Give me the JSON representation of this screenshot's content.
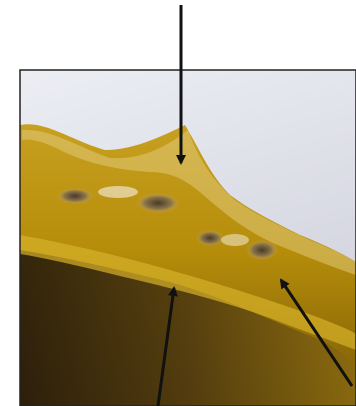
{
  "figure": {
    "description_visible_text": "",
    "arrows": [
      {
        "name": "top-arrow",
        "direction": "down"
      },
      {
        "name": "bottom-left-arrow",
        "direction": "up"
      },
      {
        "name": "bottom-right-arrow",
        "direction": "up-left"
      }
    ],
    "colors": {
      "sky": "#d9dbe6",
      "sky_light": "#eceef4",
      "gold": "#c9a10c",
      "gold_dark": "#8a6a08",
      "shadow": "#2a1e12",
      "highlight": "#efe3c6",
      "frame": "#222222",
      "arrow": "#111111"
    }
  }
}
